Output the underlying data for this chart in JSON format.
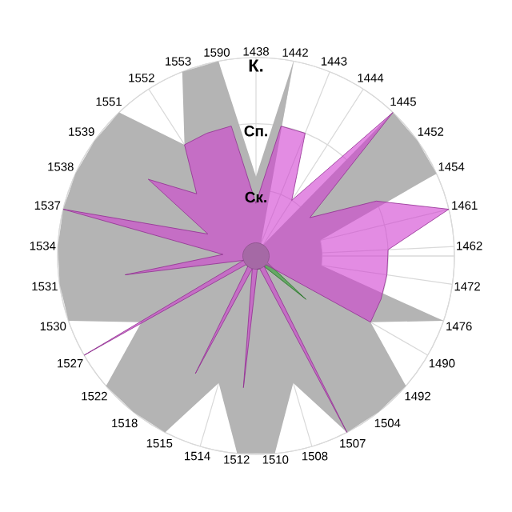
{
  "chart_data": {
    "type": "radar",
    "categories": [
      "1438",
      "1442",
      "1443",
      "1444",
      "1445",
      "1452",
      "1454",
      "1461",
      "1462",
      "1472",
      "1476",
      "1490",
      "1492",
      "1504",
      "1507",
      "1508",
      "1510",
      "1512",
      "1514",
      "1515",
      "1518",
      "1522",
      "1527",
      "1530",
      "1531",
      "1534",
      "1537",
      "1538",
      "1539",
      "1551",
      "1552",
      "1553",
      "1590"
    ],
    "ylim": [
      0,
      3
    ],
    "yticks": [
      {
        "value": 1,
        "label": "Ск."
      },
      {
        "value": 2,
        "label": "Сп."
      },
      {
        "value": 3,
        "label": "К."
      }
    ],
    "grid": true,
    "series": [
      {
        "color": "#b4b4b4",
        "values": [
          1.2,
          3.0,
          0.2,
          0.2,
          3.0,
          3.0,
          3.0,
          1.0,
          1.0,
          1.0,
          3.0,
          2.0,
          3.0,
          3.0,
          3.0,
          2.0,
          3.0,
          3.0,
          2.0,
          3.0,
          3.0,
          3.0,
          2.0,
          3.0,
          3.0,
          3.0,
          3.0,
          3.0,
          3.0,
          3.0,
          2.0,
          3.0,
          3.0
        ]
      },
      {
        "color": "#30a030",
        "values": [
          0.2,
          0.2,
          0.2,
          0.2,
          0.2,
          0.2,
          0.2,
          0.2,
          0.2,
          0.2,
          0.2,
          0.2,
          1.0,
          0.2,
          0.2,
          0.2,
          0.2,
          0.2,
          0.2,
          0.2,
          0.2,
          0.2,
          0.2,
          0.2,
          0.2,
          0.2,
          0.2,
          0.2,
          0.2,
          0.2,
          0.2,
          0.2,
          0.2
        ]
      },
      {
        "color": "#d040d0",
        "values": [
          0.8,
          2.0,
          2.0,
          1.0,
          3.0,
          1.0,
          2.0,
          3.0,
          2.0,
          2.0,
          2.0,
          2.0,
          0.2,
          0.2,
          3.0,
          0.2,
          0.2,
          2.0,
          0.2,
          2.0,
          0.2,
          0.2,
          3.0,
          0.2,
          2.0,
          0.5,
          3.0,
          0.8,
          2.0,
          1.3,
          2.0,
          2.0,
          2.0
        ]
      }
    ]
  }
}
